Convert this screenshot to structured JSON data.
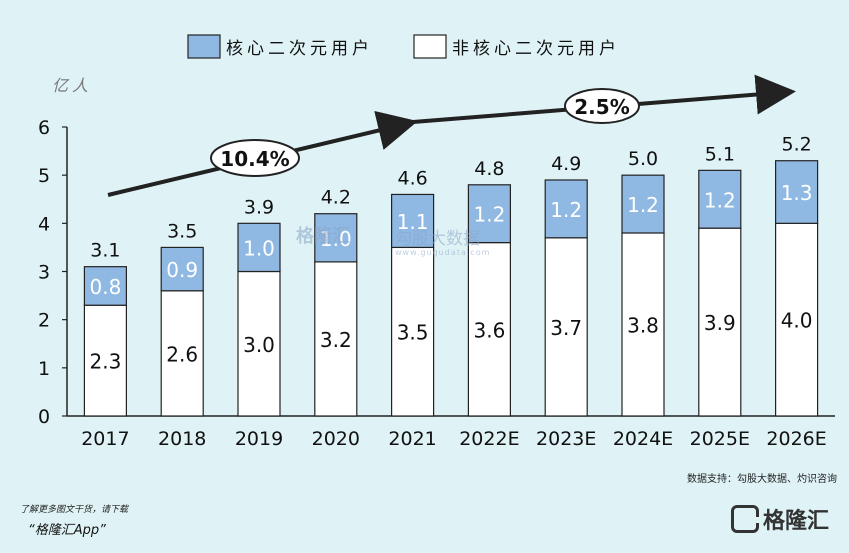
{
  "chart_data": {
    "type": "bar",
    "stacked": true,
    "unit_label": "亿人",
    "categories": [
      "2017",
      "2018",
      "2019",
      "2020",
      "2021",
      "2022E",
      "2023E",
      "2024E",
      "2025E",
      "2026E"
    ],
    "series": [
      {
        "name": "非核心二次元用户",
        "values": [
          2.3,
          2.6,
          3.0,
          3.2,
          3.5,
          3.6,
          3.7,
          3.8,
          3.9,
          4.0
        ],
        "color": "#ffffff"
      },
      {
        "name": "核心二次元用户",
        "values": [
          0.8,
          0.9,
          1.0,
          1.0,
          1.1,
          1.2,
          1.2,
          1.2,
          1.2,
          1.3
        ],
        "color": "#8fb9e3"
      }
    ],
    "totals": [
      "3.1",
      "3.5",
      "3.9",
      "4.2",
      "4.6",
      "4.8",
      "4.9",
      "5.0",
      "5.1",
      "5.2"
    ],
    "ylim": [
      0,
      6
    ],
    "yticks": [
      "0",
      "1",
      "2",
      "3",
      "4",
      "5",
      "6"
    ],
    "legend_position": "top",
    "annotations": [
      "10.4%",
      "2.5%"
    ]
  },
  "source": "数据支持：勾股大数据、灼识咨询",
  "watermark": {
    "brand": "格隆汇",
    "site": "勾股大数据",
    "url": "www.gugudata.com"
  },
  "promo": {
    "line1": "了解更多图文干货，请下载",
    "line2": "“格隆汇App”"
  },
  "logo_text": "格隆汇"
}
